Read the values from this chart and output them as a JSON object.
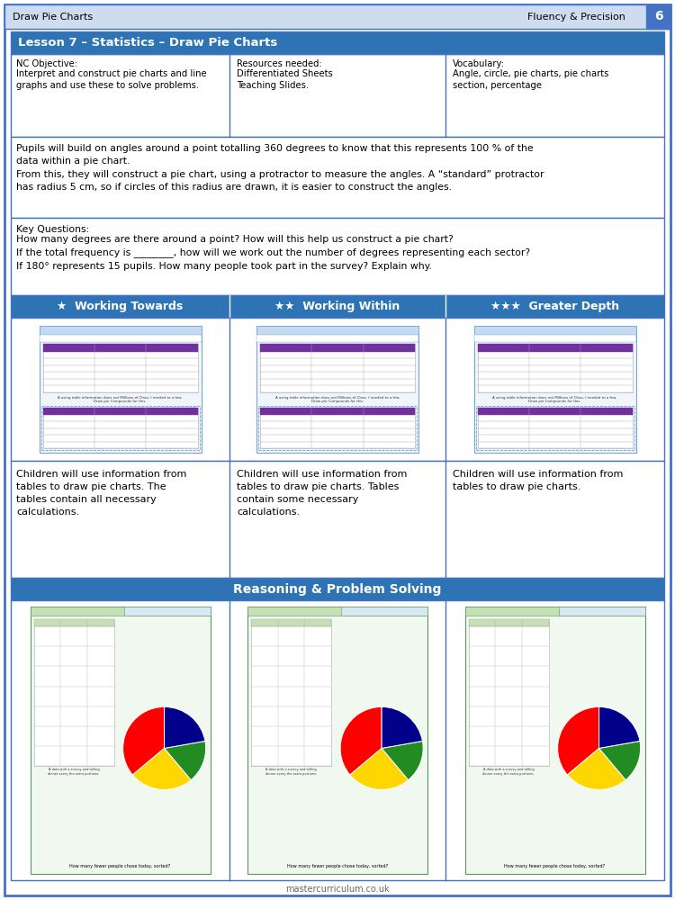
{
  "page_bg": "#ffffff",
  "outer_border_color": "#4472c4",
  "header_bg": "#cfdcef",
  "dark_blue_bg": "#2e74b5",
  "dark_blue_text": "#ffffff",
  "lesson_title": "Lesson 7 – Statistics – Draw Pie Charts",
  "top_left_text": "Draw Pie Charts",
  "top_right_text": "Fluency & Precision",
  "page_number": "6",
  "nc_objective_label": "NC Objective:",
  "nc_objective_text": "Interpret and construct pie charts and line\ngraphs and use these to solve problems.",
  "resources_label": "Resources needed:",
  "resources_text": "Differentiated Sheets\nTeaching Slides.",
  "vocabulary_label": "Vocabulary:",
  "vocabulary_text": "Angle, circle, pie charts, pie charts\nsection, percentage",
  "body_text": "Pupils will build on angles around a point totalling 360 degrees to know that this represents 100 % of the\ndata within a pie chart.\nFrom this, they will construct a pie chart, using a protractor to measure the angles. A “standard” protractor\nhas radius 5 cm, so if circles of this radius are drawn, it is easier to construct the angles.",
  "key_questions_label": "Key Questions:",
  "key_questions_text": "How many degrees are there around a point? How will this help us construct a pie chart?\nIf the total frequency is ________, how will we work out the number of degrees representing each sector?\nIf 180° represents 15 pupils. How many people took part in the survey? Explain why.",
  "working_towards": "Working Towards",
  "working_within": "Working Within",
  "greater_depth": "Greater Depth",
  "desc_towards": "Children will use information from\ntables to draw pie charts. The\ntables contain all necessary\ncalculations.",
  "desc_within": "Children will use information from\ntables to draw pie charts. Tables\ncontain some necessary\ncalculations.",
  "desc_depth": "Children will use information from\ntables to draw pie charts.",
  "reasoning_title": "Reasoning & Problem Solving",
  "footer_text": "mastercurriculum.co.uk",
  "col_split1": 255,
  "col_split2": 495,
  "pie_colors": [
    "#ff0000",
    "#ffd700",
    "#228b22",
    "#00008b"
  ],
  "pie_slices": [
    130,
    90,
    60,
    80
  ]
}
